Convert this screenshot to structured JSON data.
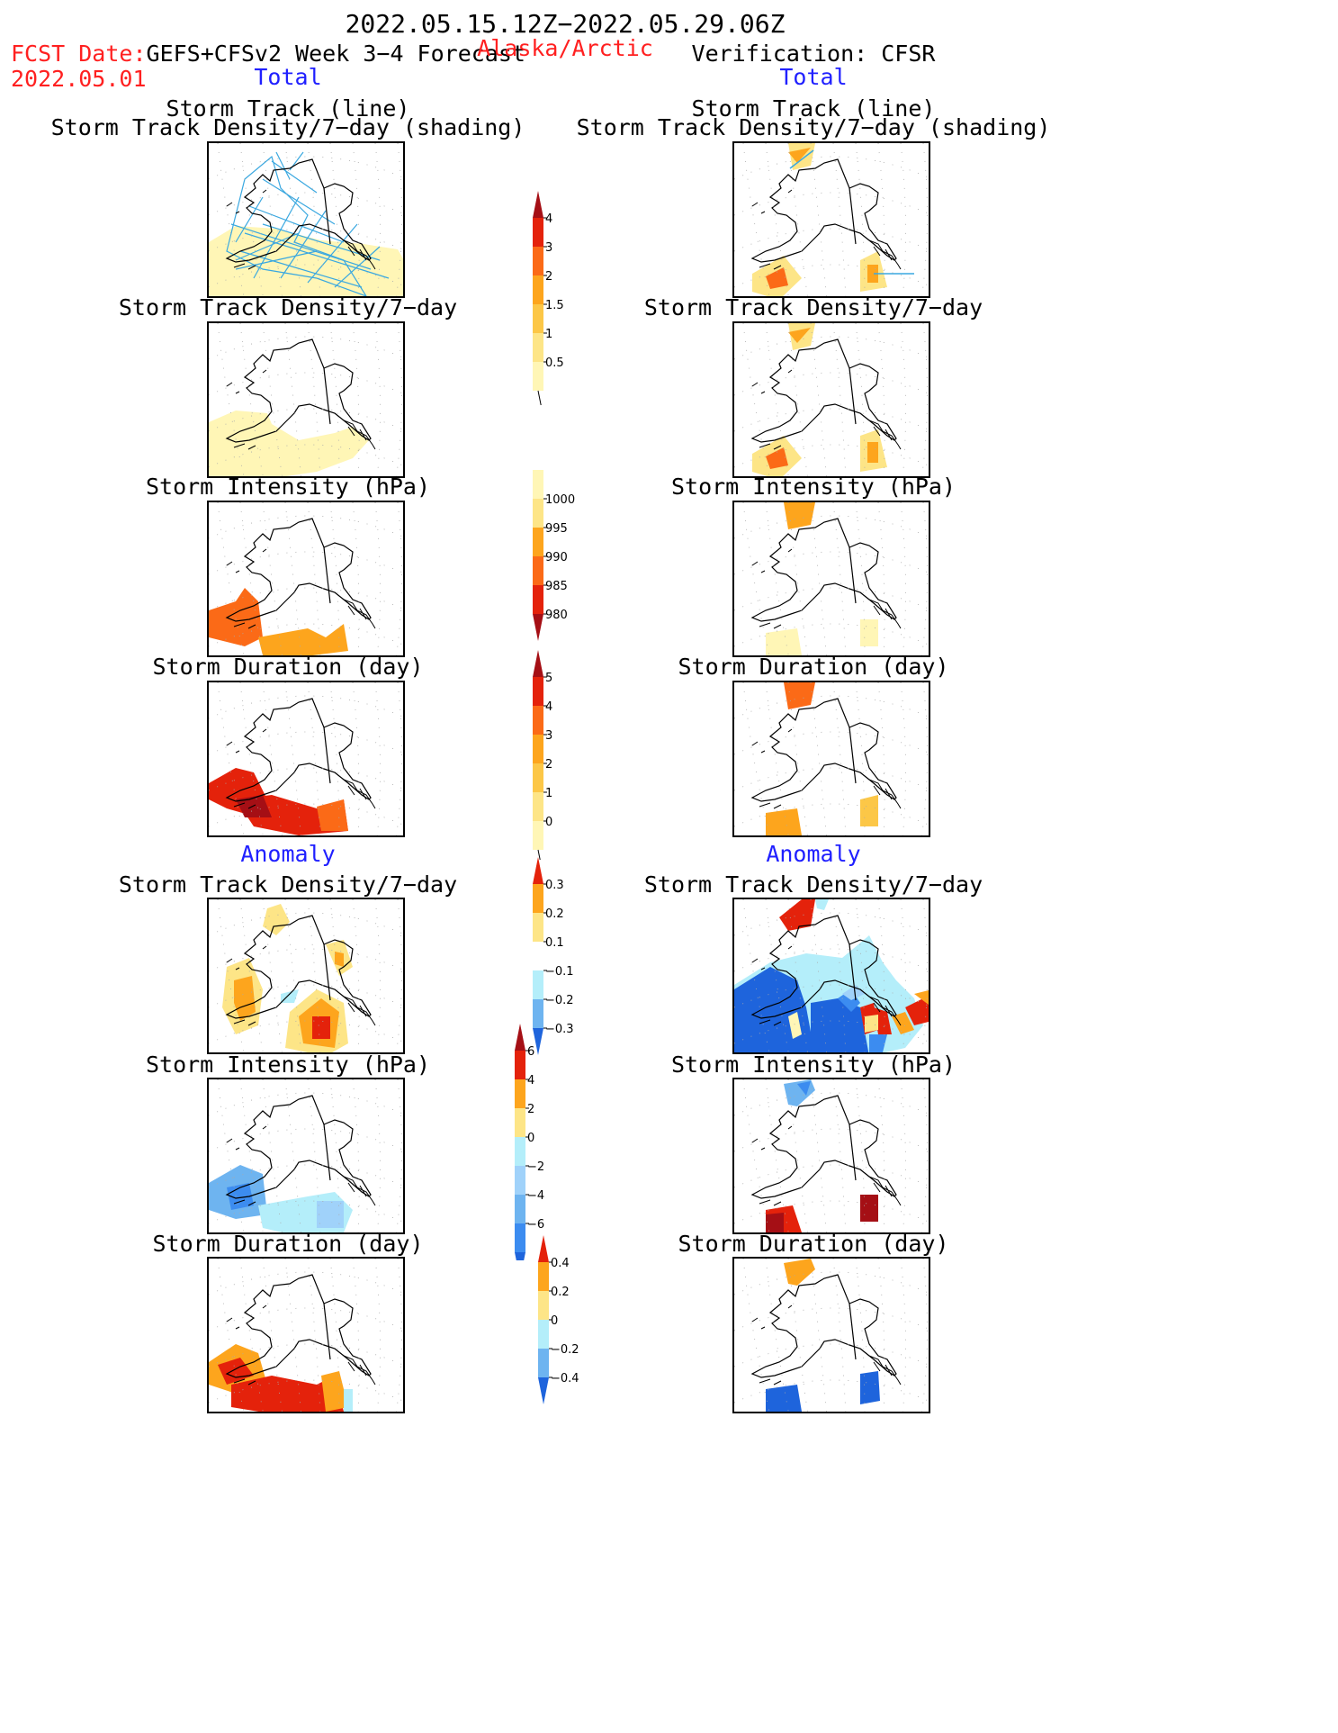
{
  "header": {
    "period": "2022.05.15.12Z−2022.05.29.06Z",
    "fcst_label": "FCST Date:",
    "fcst_model": "GEFS+CFSv2 Week 3−4 Forecast",
    "fcst_date": "2022.05.01",
    "region": "Alaska/Arctic",
    "verification": "Verification: CFSR"
  },
  "columns": {
    "left_total": "Total",
    "right_total": "Total",
    "left_anomaly": "Anomaly",
    "right_anomaly": "Anomaly"
  },
  "panel_titles": {
    "track_line": "Storm Track (line)",
    "track_shading": "Storm Track Density/7−day (shading)",
    "density": "Storm Track Density/7−day",
    "intensity": "Storm Intensity (hPa)",
    "duration": "Storm Duration (day)"
  },
  "colorbars": {
    "density": {
      "ticks": [
        "4",
        "3",
        "2",
        "1.5",
        "1",
        "0.5"
      ],
      "colors": [
        "#a50f15",
        "#e4220b",
        "#fb6a17",
        "#fda51d",
        "#fcc747",
        "#fde587",
        "#fff6b6"
      ]
    },
    "intensity": {
      "ticks": [
        "1000",
        "995",
        "990",
        "985",
        "980"
      ],
      "colors": [
        "#fff6b6",
        "#fde587",
        "#fda51d",
        "#fb6a17",
        "#e4220b",
        "#a50f15"
      ]
    },
    "duration": {
      "ticks": [
        "5",
        "4",
        "3",
        "2",
        "1",
        "0"
      ],
      "colors": [
        "#a50f15",
        "#e4220b",
        "#fb6a17",
        "#fda51d",
        "#fcc747",
        "#fde587",
        "#fff6b6"
      ]
    },
    "anom_density": {
      "ticks": [
        "0.3",
        "0.2",
        "0.1",
        "−0.1",
        "−0.2",
        "−0.3"
      ],
      "colors": [
        "#e4220b",
        "#fda51d",
        "#fde587",
        "#ffffff",
        "#b4eefa",
        "#6eb4f0",
        "#1e64dc"
      ]
    },
    "anom_intensity": {
      "ticks": [
        "6",
        "4",
        "2",
        "0",
        "−2",
        "−4",
        "−6"
      ],
      "colors": [
        "#a50f15",
        "#e4220b",
        "#fda51d",
        "#fde587",
        "#b4eefa",
        "#a0d2fa",
        "#6eb4f0",
        "#3c8cf0",
        "#1e64dc"
      ]
    },
    "anom_duration": {
      "ticks": [
        "0.4",
        "0.2",
        "0",
        "−0.2",
        "−0.4"
      ],
      "colors": [
        "#e4220b",
        "#fda51d",
        "#fde587",
        "#b4eefa",
        "#6eb4f0",
        "#1e64dc"
      ]
    }
  }
}
